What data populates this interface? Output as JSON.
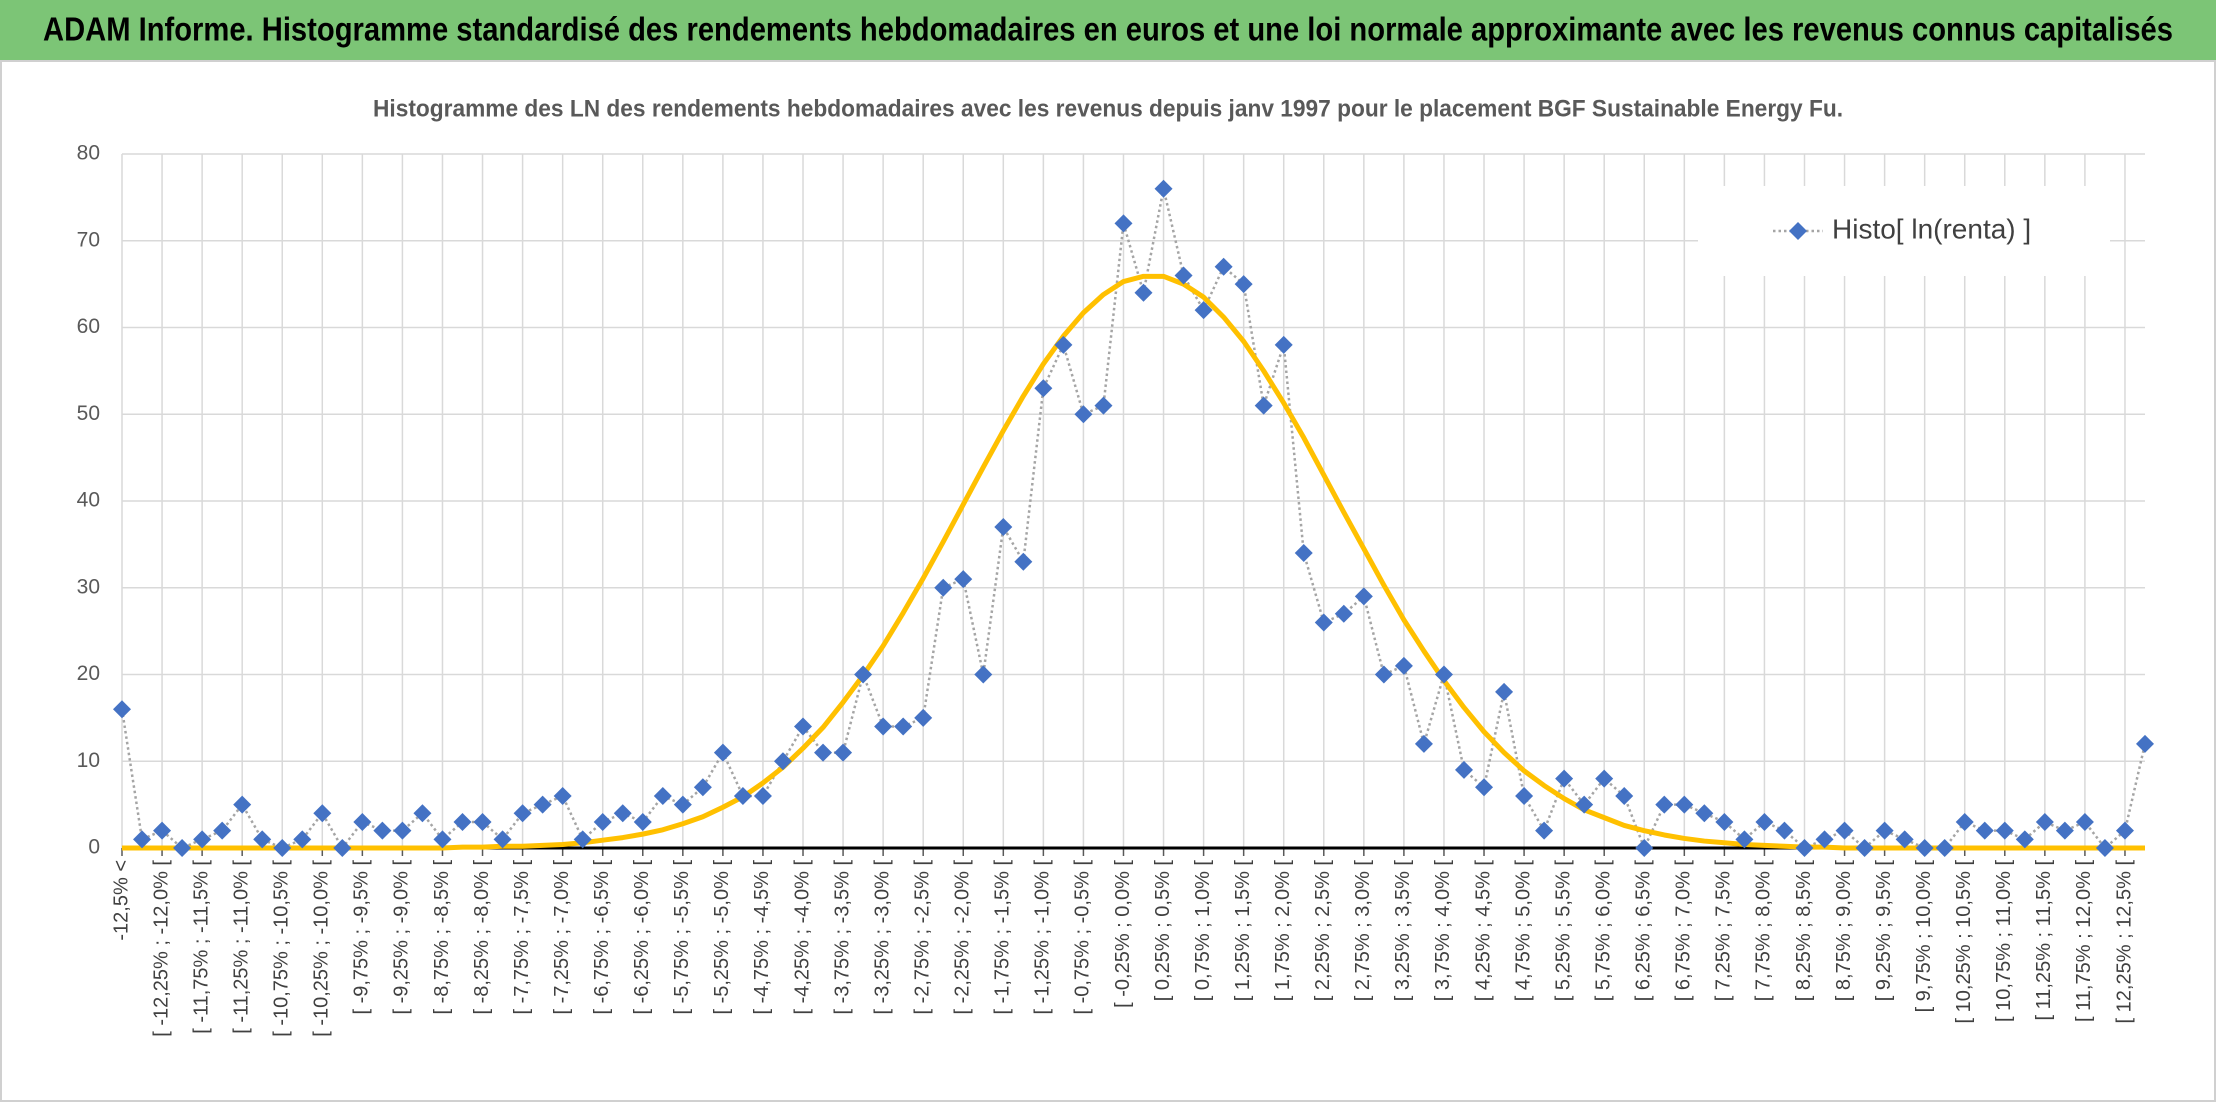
{
  "header": {
    "title": "ADAM Informe. Histogramme standardisé des rendements hebdomadaires en euros et une loi normale approximante avec les revenus connus capitalisés"
  },
  "chart_data": {
    "type": "line",
    "title": "Histogramme des LN des rendements hebdomadaires avec les revenus depuis janv 1997 pour le placement BGF Sustainable Energy Fu.",
    "categories": [
      "-12,5% <",
      null,
      "[ -12,25% ; -12,0% [",
      null,
      "[ -11,75% ; -11,5% [",
      null,
      "[ -11,25% ; -11,0% [",
      null,
      "[ -10,75% ; -10,5% [",
      null,
      "[ -10,25% ; -10,0% [",
      null,
      "[ -9,75% ; -9,5% [",
      null,
      "[ -9,25% ; -9,0% [",
      null,
      "[ -8,75% ; -8,5% [",
      null,
      "[ -8,25% ; -8,0% [",
      null,
      "[ -7,75% ; -7,5% [",
      null,
      "[ -7,25% ; -7,0% [",
      null,
      "[ -6,75% ; -6,5% [",
      null,
      "[ -6,25% ; -6,0% [",
      null,
      "[ -5,75% ; -5,5% [",
      null,
      "[ -5,25% ; -5,0% [",
      null,
      "[ -4,75% ; -4,5% [",
      null,
      "[ -4,25% ; -4,0% [",
      null,
      "[ -3,75% ; -3,5% [",
      null,
      "[ -3,25% ; -3,0% [",
      null,
      "[ -2,75% ; -2,5% [",
      null,
      "[ -2,25% ; -2,0% [",
      null,
      "[ -1,75% ; -1,5% [",
      null,
      "[ -1,25% ; -1,0% [",
      null,
      "[ -0,75% ; -0,5% [",
      null,
      "[ -0,25% ; 0,0% [",
      null,
      "[ 0,25% ; 0,5% [",
      null,
      "[ 0,75% ; 1,0% [",
      null,
      "[ 1,25% ; 1,5% [",
      null,
      "[ 1,75% ; 2,0% [",
      null,
      "[ 2,25% ; 2,5% [",
      null,
      "[ 2,75% ; 3,0% [",
      null,
      "[ 3,25% ; 3,5% [",
      null,
      "[ 3,75% ; 4,0% [",
      null,
      "[ 4,25% ; 4,5% [",
      null,
      "[ 4,75% ; 5,0% [",
      null,
      "[ 5,25% ; 5,5% [",
      null,
      "[ 5,75% ; 6,0% [",
      null,
      "[ 6,25% ; 6,5% [",
      null,
      "[ 6,75% ; 7,0% [",
      null,
      "[ 7,25% ; 7,5% [",
      null,
      "[ 7,75% ; 8,0% [",
      null,
      "[ 8,25% ; 8,5% [",
      null,
      "[ 8,75% ; 9,0% [",
      null,
      "[ 9,25% ; 9,5% [",
      null,
      "[ 9,75% ; 10,0% [",
      null,
      "[ 10,25% ; 10,5% [",
      null,
      "[ 10,75% ; 11,0% [",
      null,
      "[ 11,25% ; 11,5% [",
      null,
      "[ 11,75% ; 12,0% [",
      null,
      "[ 12,25% ; 12,5% [",
      null
    ],
    "series": [
      {
        "name": "Histo[ ln(renta) ]",
        "color": "#4472c4",
        "marker": "diamond",
        "line_color": "#a5a5a5",
        "line_style": "dotted",
        "values": [
          16,
          1,
          2,
          0,
          1,
          2,
          5,
          1,
          0,
          1,
          4,
          0,
          3,
          2,
          2,
          4,
          1,
          3,
          3,
          1,
          4,
          5,
          6,
          1,
          3,
          4,
          3,
          6,
          5,
          7,
          11,
          6,
          6,
          10,
          14,
          11,
          11,
          20,
          14,
          14,
          15,
          30,
          31,
          20,
          37,
          33,
          53,
          58,
          50,
          51,
          72,
          64,
          76,
          66,
          62,
          67,
          65,
          51,
          58,
          34,
          26,
          27,
          29,
          20,
          21,
          12,
          20,
          9,
          7,
          18,
          6,
          2,
          8,
          5,
          8,
          6,
          0,
          5,
          5,
          4,
          3,
          1,
          3,
          2,
          0,
          1,
          2,
          0,
          2,
          1,
          0,
          0,
          3,
          2,
          2,
          1,
          3,
          2,
          3,
          0,
          2,
          12
        ]
      },
      {
        "color": "#ffc000",
        "marker": "none",
        "values": [
          0,
          0,
          0,
          0,
          0,
          0,
          0,
          0,
          0,
          0,
          0,
          0,
          0,
          0,
          0,
          0,
          0,
          0.1,
          0.1,
          0.2,
          0.2,
          0.3,
          0.4,
          0.6,
          0.9,
          1.2,
          1.6,
          2.1,
          2.8,
          3.6,
          4.7,
          5.9,
          7.5,
          9.3,
          11.5,
          13.9,
          16.8,
          19.9,
          23.3,
          27.1,
          31.1,
          35.3,
          39.6,
          43.9,
          48.1,
          52.1,
          55.8,
          59.0,
          61.7,
          63.8,
          65.3,
          65.9,
          65.9,
          65.0,
          63.5,
          61.2,
          58.4,
          55.0,
          51.3,
          47.3,
          43.0,
          38.7,
          34.5,
          30.3,
          26.3,
          22.7,
          19.3,
          16.2,
          13.4,
          11.0,
          8.9,
          7.2,
          5.7,
          4.4,
          3.5,
          2.6,
          2.0,
          1.5,
          1.1,
          0.8,
          0.6,
          0.4,
          0.3,
          0.2,
          0.1,
          0.1,
          0,
          0,
          0,
          0,
          0,
          0,
          0,
          0,
          0,
          0,
          0,
          0,
          0,
          0,
          0,
          0
        ]
      }
    ],
    "ylim": [
      0,
      80
    ],
    "yticks": [
      0,
      10,
      20,
      30,
      40,
      50,
      60,
      70,
      80
    ],
    "grid": true,
    "legend": "upper right"
  }
}
